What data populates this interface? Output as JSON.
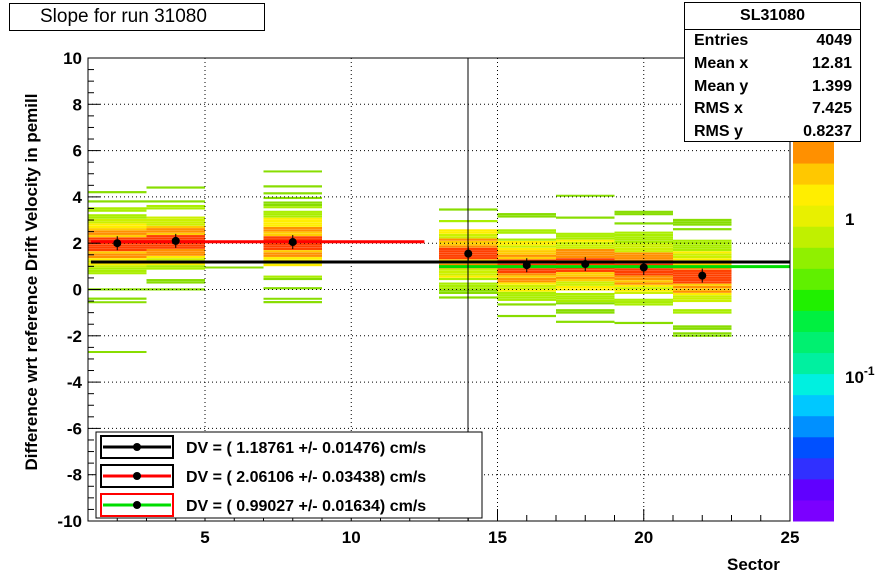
{
  "title": "Slope for run 31080",
  "stats": {
    "name": "SL31080",
    "rows": [
      {
        "label": "Entries",
        "value": "4049"
      },
      {
        "label": "Mean x",
        "value": "12.81"
      },
      {
        "label": "Mean y",
        "value": "1.399"
      },
      {
        "label": "RMS x",
        "value": "7.425"
      },
      {
        "label": "RMS y",
        "value": "0.8237"
      }
    ]
  },
  "chart_data": {
    "type": "heatmap",
    "title": "Slope for run 31080",
    "xlabel": "Sector",
    "ylabel": "Difference wrt reference Drift Velocity in pemill",
    "xlim": [
      1,
      25
    ],
    "ylim": [
      -10,
      10
    ],
    "x_ticks": [
      5,
      10,
      15,
      20,
      25
    ],
    "y_ticks": [
      -10,
      -8,
      -6,
      -4,
      -2,
      0,
      2,
      4,
      6,
      8,
      10
    ],
    "grid": true,
    "z_scale": "log",
    "z_tick_labels": [
      "1",
      "10^-1"
    ],
    "points": [
      {
        "x": 2,
        "y": 2.0
      },
      {
        "x": 4,
        "y": 2.1
      },
      {
        "x": 8,
        "y": 2.05
      },
      {
        "x": 14,
        "y": 1.55
      },
      {
        "x": 16,
        "y": 1.05
      },
      {
        "x": 18,
        "y": 1.1
      },
      {
        "x": 20,
        "y": 0.95
      },
      {
        "x": 22,
        "y": 0.6
      }
    ],
    "fits": [
      {
        "color": "#000000",
        "x": [
          1.1,
          25
        ],
        "y": 1.18761
      },
      {
        "color": "#ff0000",
        "x": [
          1.1,
          12.5
        ],
        "y": 2.06106
      },
      {
        "color": "#00dd00",
        "x": [
          13,
          25
        ],
        "y": 0.99027
      }
    ],
    "legend": {
      "placement": "bottom-left",
      "entries": [
        {
          "text": "DV = (   1.18761 +/-    0.01476) cm/s",
          "line_color": "#000000",
          "box_color": "#000000"
        },
        {
          "text": "DV = (   2.06106 +/-    0.03438) cm/s",
          "line_color": "#ff0000",
          "box_color": "#000000"
        },
        {
          "text": "DV = (   0.99027 +/-    0.01634) cm/s",
          "line_color": "#00dd00",
          "box_color": "#ff0000"
        }
      ]
    }
  }
}
